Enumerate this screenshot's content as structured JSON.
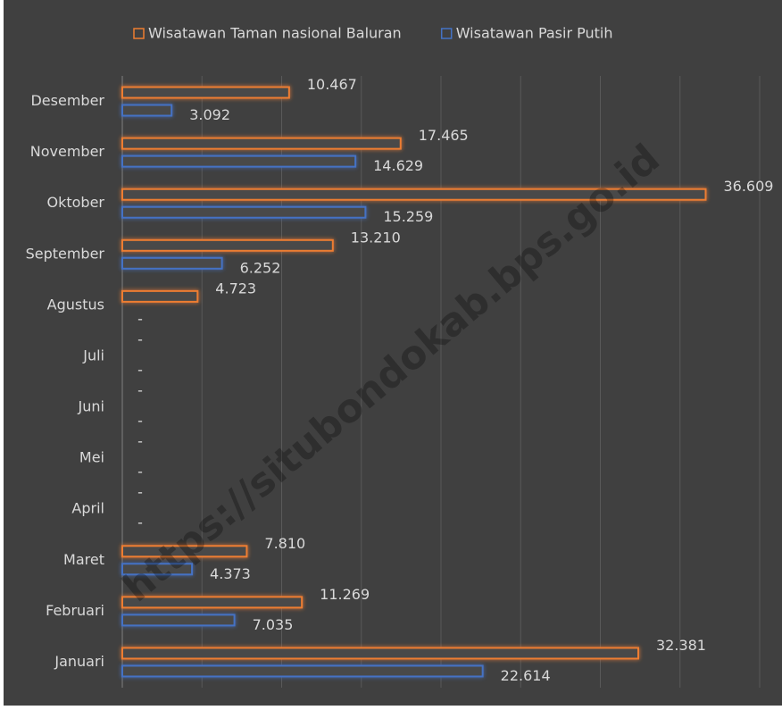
{
  "chart_data": {
    "type": "hbar",
    "categories": [
      "Januari",
      "Februari",
      "Maret",
      "April",
      "Mei",
      "Juni",
      "Juli",
      "Agustus",
      "September",
      "Oktober",
      "November",
      "Desember"
    ],
    "series": [
      {
        "name": "Wisatawan Taman nasional Baluran",
        "color": "#ed7d31",
        "values": [
          32381,
          11269,
          7810,
          0,
          0,
          0,
          0,
          4723,
          13210,
          36609,
          17465,
          10467
        ],
        "value_labels": [
          "32.381",
          "11.269",
          "7.810",
          "-",
          "-",
          "-",
          "-",
          "4.723",
          "13.210",
          "36.609",
          "17.465",
          "10.467"
        ]
      },
      {
        "name": "Wisatawan Pasir Putih",
        "color": "#4472c4",
        "values": [
          22614,
          7035,
          4373,
          0,
          0,
          0,
          0,
          0,
          6252,
          15259,
          14629,
          3092
        ],
        "value_labels": [
          "22.614",
          "7.035",
          "4.373",
          "-",
          "-",
          "-",
          "-",
          "-",
          "6.252",
          "15.259",
          "14.629",
          "3.092"
        ]
      }
    ],
    "xlim": [
      0,
      40000
    ],
    "xticks": [
      0,
      5000,
      10000,
      15000,
      20000,
      25000,
      30000,
      35000,
      40000
    ],
    "grid": true,
    "legend": "top",
    "watermark": "https://situbondokab.bps.go.id"
  }
}
